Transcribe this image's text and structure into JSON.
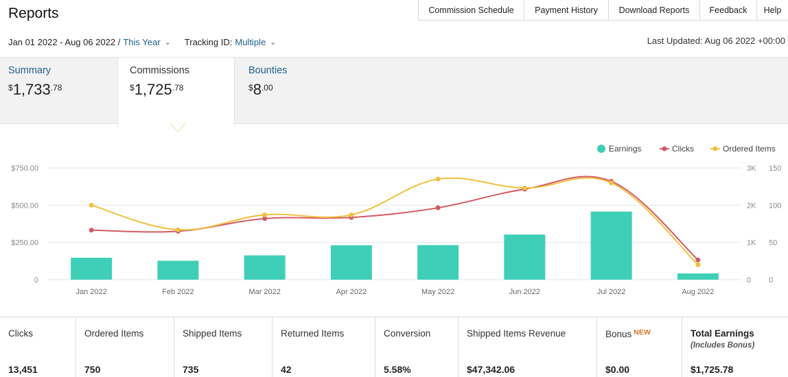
{
  "page": {
    "title": "Reports"
  },
  "topnav": [
    {
      "label": "Commission Schedule"
    },
    {
      "label": "Payment History"
    },
    {
      "label": "Download Reports"
    },
    {
      "label": "Feedback"
    },
    {
      "label": "Help"
    }
  ],
  "filters": {
    "date_range": "Jan 01 2022 - Aug 06 2022 /",
    "period": "This Year",
    "tracking_label": "Tracking ID:",
    "tracking_value": "Multiple",
    "caret_icon": "chevron-down-icon"
  },
  "last_updated": "Last Updated: Aug 06 2022 +00:00",
  "tabs": {
    "summary": {
      "label": "Summary",
      "currency": "$",
      "whole": "1,733",
      "cents": ".78"
    },
    "commissions": {
      "label": "Commissions",
      "currency": "$",
      "whole": "1,725",
      "cents": ".78"
    },
    "bounties": {
      "label": "Bounties",
      "currency": "$",
      "whole": "8",
      "cents": ".00"
    }
  },
  "colors": {
    "earnings": "#3fcfb8",
    "clicks": "#d35b62",
    "ordered": "#efc03f",
    "link": "#1f5f8b",
    "new_badge": "#d9752a"
  },
  "chart_data": {
    "type": "bar",
    "categories": [
      "Jan 2022",
      "Feb 2022",
      "Mar 2022",
      "Apr 2022",
      "May 2022",
      "Jun 2022",
      "Jul 2022",
      "Aug 2022"
    ],
    "series": [
      {
        "name": "Earnings",
        "type": "bar",
        "axis": "left",
        "values": [
          147,
          127,
          163,
          231,
          232,
          303,
          457,
          42
        ]
      },
      {
        "name": "Clicks",
        "type": "line",
        "axis": "right1",
        "values": [
          1330,
          1300,
          1640,
          1670,
          1930,
          2430,
          2640,
          530
        ]
      },
      {
        "name": "Ordered Items",
        "type": "line",
        "axis": "right2",
        "values": [
          100,
          67,
          87,
          87,
          135,
          123,
          130,
          20
        ]
      }
    ],
    "y_left": {
      "ticks": [
        "0",
        "$250.00",
        "$500.00",
        "$750.00"
      ],
      "max": 750
    },
    "y_right1": {
      "ticks": [
        "0",
        "1K",
        "2K",
        "3K"
      ],
      "max": 3000
    },
    "y_right2": {
      "ticks": [
        "0",
        "50",
        "100",
        "150"
      ],
      "max": 150
    },
    "legend_position": "top-right",
    "grid": true
  },
  "metrics": [
    {
      "label": "Clicks",
      "value": "13,451"
    },
    {
      "label": "Ordered Items",
      "value": "750"
    },
    {
      "label": "Shipped Items",
      "value": "735"
    },
    {
      "label": "Returned Items",
      "value": "42"
    },
    {
      "label": "Conversion",
      "value": "5.58%"
    },
    {
      "label": "Shipped Items Revenue",
      "value": "$47,342.06"
    },
    {
      "label": "Bonus",
      "badge": "NEW",
      "value": "$0.00"
    },
    {
      "label": "Total Earnings",
      "sub": "(Includes Bonus)",
      "value": "$1,725.78"
    }
  ]
}
